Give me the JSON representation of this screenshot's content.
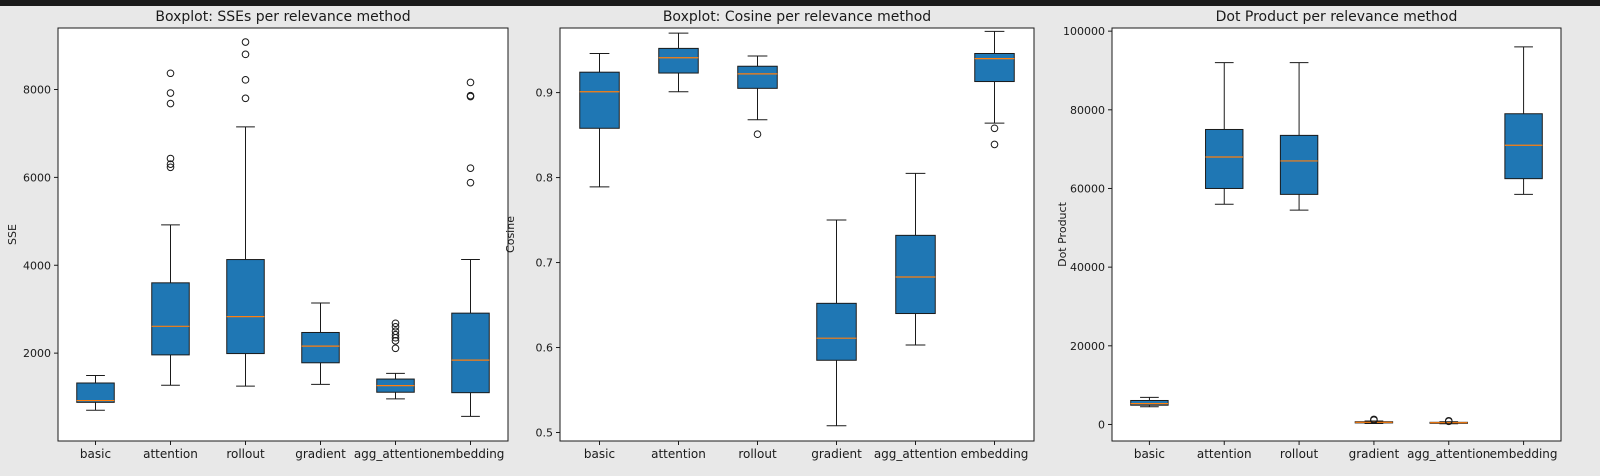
{
  "figure": {
    "background": "#e8e8e8",
    "box_fill": "#1f77b4",
    "median_color": "#ff7f0e"
  },
  "chart_data": [
    {
      "type": "boxplot",
      "title": "Boxplot: SSEs per relevance method",
      "xlabel": "",
      "ylabel": "SSE",
      "categories": [
        "basic",
        "attention",
        "rollout",
        "gradient",
        "agg_attention",
        "embedding"
      ],
      "ylim": [
        0,
        9400
      ],
      "yticks": [
        2000,
        4000,
        6000,
        8000
      ],
      "grid": false,
      "boxes": [
        {
          "whislo": 700,
          "q1": 880,
          "med": 920,
          "q3": 1320,
          "whishi": 1490,
          "fliers": []
        },
        {
          "whislo": 1270,
          "q1": 1960,
          "med": 2610,
          "q3": 3600,
          "whishi": 4920,
          "fliers": [
            6230,
            6300,
            6430,
            7680,
            7920,
            8370
          ]
        },
        {
          "whislo": 1250,
          "q1": 1990,
          "med": 2830,
          "q3": 4130,
          "whishi": 7150,
          "fliers": [
            7800,
            8220,
            8800,
            9080
          ]
        },
        {
          "whislo": 1290,
          "q1": 1780,
          "med": 2160,
          "q3": 2470,
          "whishi": 3140,
          "fliers": []
        },
        {
          "whislo": 960,
          "q1": 1110,
          "med": 1260,
          "q3": 1410,
          "whishi": 1540,
          "fliers": [
            2110,
            2280,
            2350,
            2420,
            2500,
            2600,
            2680
          ]
        },
        {
          "whislo": 560,
          "q1": 1100,
          "med": 1840,
          "q3": 2910,
          "whishi": 4130,
          "fliers": [
            5880,
            6210,
            7840,
            7860,
            8160
          ]
        }
      ]
    },
    {
      "type": "boxplot",
      "title": "Boxplot: Cosine per relevance method",
      "xlabel": "",
      "ylabel": "Cosine",
      "categories": [
        "basic",
        "attention",
        "rollout",
        "gradient",
        "agg_attention",
        "embedding"
      ],
      "ylim": [
        0.49,
        0.976
      ],
      "yticks": [
        0.5,
        0.6,
        0.7,
        0.8,
        0.9
      ],
      "grid": false,
      "boxes": [
        {
          "whislo": 0.789,
          "q1": 0.858,
          "med": 0.901,
          "q3": 0.924,
          "whishi": 0.946,
          "fliers": []
        },
        {
          "whislo": 0.901,
          "q1": 0.923,
          "med": 0.941,
          "q3": 0.952,
          "whishi": 0.97,
          "fliers": []
        },
        {
          "whislo": 0.868,
          "q1": 0.905,
          "med": 0.922,
          "q3": 0.931,
          "whishi": 0.943,
          "fliers": [
            0.851
          ]
        },
        {
          "whislo": 0.508,
          "q1": 0.585,
          "med": 0.611,
          "q3": 0.652,
          "whishi": 0.75,
          "fliers": []
        },
        {
          "whislo": 0.603,
          "q1": 0.64,
          "med": 0.683,
          "q3": 0.732,
          "whishi": 0.805,
          "fliers": []
        },
        {
          "whislo": 0.864,
          "q1": 0.913,
          "med": 0.94,
          "q3": 0.946,
          "whishi": 0.972,
          "fliers": [
            0.839,
            0.858
          ]
        }
      ]
    },
    {
      "type": "boxplot",
      "title": "Dot Product per relevance method",
      "xlabel": "",
      "ylabel": "Dot Product",
      "categories": [
        "basic",
        "attention",
        "rollout",
        "gradient",
        "agg_attention",
        "embedding"
      ],
      "ylim": [
        -4200,
        100800
      ],
      "yticks": [
        0,
        20000,
        40000,
        60000,
        80000,
        100000
      ],
      "grid": false,
      "boxes": [
        {
          "whislo": 4500,
          "q1": 4900,
          "med": 5300,
          "q3": 6100,
          "whishi": 6900,
          "fliers": []
        },
        {
          "whislo": 56000,
          "q1": 60000,
          "med": 68000,
          "q3": 75000,
          "whishi": 92000,
          "fliers": []
        },
        {
          "whislo": 54500,
          "q1": 58500,
          "med": 67000,
          "q3": 73500,
          "whishi": 92000,
          "fliers": []
        },
        {
          "whislo": 250,
          "q1": 400,
          "med": 550,
          "q3": 700,
          "whishi": 900,
          "fliers": [
            1100,
            1300
          ]
        },
        {
          "whislo": 200,
          "q1": 350,
          "med": 450,
          "q3": 550,
          "whishi": 700,
          "fliers": [
            800,
            950
          ]
        },
        {
          "whislo": 58500,
          "q1": 62500,
          "med": 71000,
          "q3": 79000,
          "whishi": 96000,
          "fliers": []
        }
      ]
    }
  ]
}
